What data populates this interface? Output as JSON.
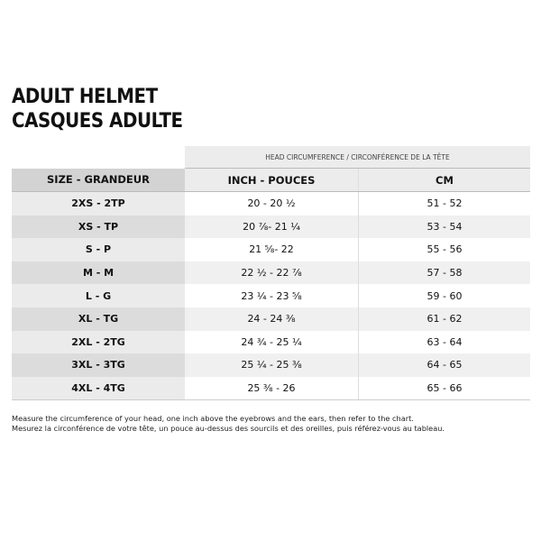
{
  "title_lines": [
    "ADULT HELMET",
    "CASQUES ADULTE"
  ],
  "table": {
    "group_header": "HEAD CIRCUMFERENCE / CIRCONFÉRENCE DE LA TÊTE",
    "columns": [
      "SIZE - GRANDEUR",
      "INCH - POUCES",
      "CM"
    ],
    "rows": [
      [
        "2XS - 2TP",
        "20 - 20 ½",
        "51 - 52"
      ],
      [
        "XS - TP",
        "20 ⅞- 21 ¼",
        "53 - 54"
      ],
      [
        "S - P",
        "21 ⅝- 22",
        "55 - 56"
      ],
      [
        "M - M",
        "22 ½ - 22 ⅞",
        "57 - 58"
      ],
      [
        "L - G",
        "23 ¼ - 23 ⅝",
        "59 - 60"
      ],
      [
        "XL - TG",
        "24 - 24 ⅜",
        "61 - 62"
      ],
      [
        "2XL - 2TG",
        "24 ¾ - 25 ¼",
        "63 - 64"
      ],
      [
        "3XL - 3TG",
        "25 ¼ - 25 ⅜",
        "64 - 65"
      ],
      [
        "4XL - 4TG",
        "25 ⅜ - 26",
        "65 - 66"
      ]
    ]
  },
  "notes": [
    "Measure the circumference of your head, one inch above the eyebrows and the ears, then refer to the chart.",
    "Mesurez la circonférence de votre tête, un pouce au-dessus des sourcils et des oreilles, puis référez-vous au tableau."
  ]
}
